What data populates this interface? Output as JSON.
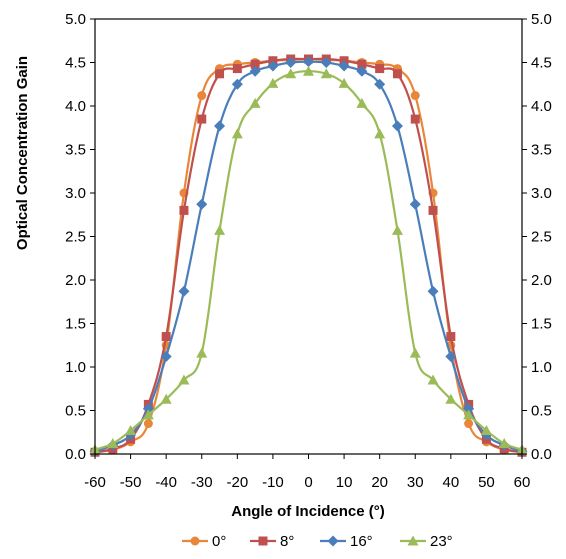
{
  "chart_data": {
    "type": "line",
    "xlabel": "Angle of Incidence (°)",
    "ylabel": "Optical Concentration Gain",
    "xlim": [
      -60,
      60
    ],
    "ylim": [
      0,
      5
    ],
    "x_ticks": [
      "-60",
      "-50",
      "-40",
      "-30",
      "-20",
      "-10",
      "0",
      "10",
      "20",
      "30",
      "40",
      "50",
      "60"
    ],
    "y_ticks": [
      "0.0",
      "0.5",
      "1.0",
      "1.5",
      "2.0",
      "2.5",
      "3.0",
      "3.5",
      "4.0",
      "4.5",
      "5.0"
    ],
    "y_ticks_right": [
      "0.0",
      "0.5",
      "1.0",
      "1.5",
      "2.0",
      "2.5",
      "3.0",
      "3.5",
      "4.0",
      "4.5",
      "5.0"
    ],
    "grid": false,
    "legend_position": "bottom",
    "series": [
      {
        "name": "0°",
        "color": "#E8873A",
        "marker": "circle",
        "x": [
          -60,
          -55,
          -50,
          -45,
          -40,
          -35,
          -30,
          -25,
          -20,
          -15,
          -10,
          -5,
          0,
          5,
          10,
          15,
          20,
          25,
          30,
          35,
          40,
          45,
          50,
          55,
          60
        ],
        "y": [
          0.02,
          0.05,
          0.14,
          0.35,
          1.25,
          3.0,
          4.12,
          4.43,
          4.48,
          4.5,
          4.52,
          4.53,
          4.54,
          4.53,
          4.52,
          4.5,
          4.48,
          4.43,
          4.12,
          3.0,
          1.25,
          0.35,
          0.14,
          0.05,
          0.02
        ]
      },
      {
        "name": "8°",
        "color": "#C0504D",
        "marker": "square",
        "x": [
          -60,
          -55,
          -50,
          -45,
          -40,
          -35,
          -30,
          -25,
          -20,
          -15,
          -10,
          -5,
          0,
          5,
          10,
          15,
          20,
          25,
          30,
          35,
          40,
          45,
          50,
          55,
          60
        ],
        "y": [
          0.02,
          0.06,
          0.17,
          0.57,
          1.35,
          2.8,
          3.85,
          4.37,
          4.43,
          4.48,
          4.52,
          4.54,
          4.54,
          4.54,
          4.52,
          4.48,
          4.43,
          4.37,
          3.85,
          2.8,
          1.35,
          0.57,
          0.17,
          0.06,
          0.02
        ]
      },
      {
        "name": "16°",
        "color": "#4A7EBB",
        "marker": "diamond",
        "x": [
          -60,
          -55,
          -50,
          -45,
          -40,
          -35,
          -30,
          -25,
          -20,
          -15,
          -10,
          -5,
          0,
          5,
          10,
          15,
          20,
          25,
          30,
          35,
          40,
          45,
          50,
          55,
          60
        ],
        "y": [
          0.03,
          0.1,
          0.22,
          0.52,
          1.12,
          1.87,
          2.87,
          3.77,
          4.25,
          4.4,
          4.46,
          4.5,
          4.51,
          4.5,
          4.46,
          4.4,
          4.25,
          3.77,
          2.87,
          1.87,
          1.12,
          0.52,
          0.22,
          0.1,
          0.03
        ]
      },
      {
        "name": "23°",
        "color": "#9BBB59",
        "marker": "triangle",
        "x": [
          -60,
          -55,
          -50,
          -45,
          -40,
          -35,
          -30,
          -25,
          -20,
          -15,
          -10,
          -5,
          0,
          5,
          10,
          15,
          20,
          25,
          30,
          35,
          40,
          45,
          50,
          55,
          60
        ],
        "y": [
          0.05,
          0.12,
          0.27,
          0.45,
          0.63,
          0.85,
          1.16,
          2.57,
          3.68,
          4.03,
          4.26,
          4.37,
          4.4,
          4.37,
          4.26,
          4.03,
          3.68,
          2.57,
          1.16,
          0.85,
          0.63,
          0.45,
          0.27,
          0.12,
          0.05
        ]
      }
    ]
  }
}
